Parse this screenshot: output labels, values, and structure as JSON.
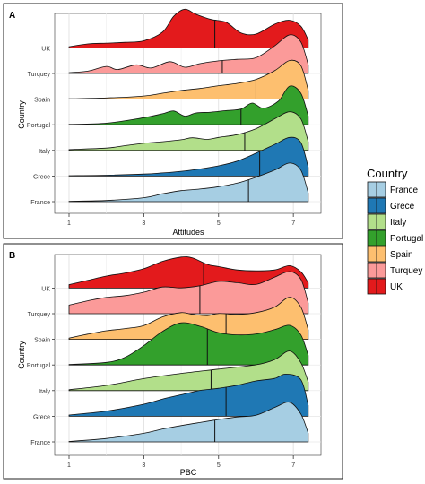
{
  "legend": {
    "title": "Country",
    "items": [
      {
        "label": "France",
        "color": "#a6cee3"
      },
      {
        "label": "Grece",
        "color": "#1f78b4"
      },
      {
        "label": "Italy",
        "color": "#b2df8a"
      },
      {
        "label": "Portugal",
        "color": "#33a02c"
      },
      {
        "label": "Spain",
        "color": "#fdbf6f"
      },
      {
        "label": "Turquey",
        "color": "#fb9a99"
      },
      {
        "label": "UK",
        "color": "#e31a1c"
      }
    ]
  },
  "chart_data": [
    {
      "type": "area",
      "panel_label": "A",
      "xlabel": "Attitudes",
      "ylabel": "Country",
      "xlim": [
        1,
        7.5
      ],
      "x_ticks": [
        "1",
        "3",
        "5",
        "7"
      ],
      "grid": true,
      "series": [
        {
          "name": "France",
          "color": "#a6cee3",
          "mean": 5.8,
          "points": [
            [
              1,
              0.01
            ],
            [
              2,
              0.03
            ],
            [
              3,
              0.1
            ],
            [
              3.5,
              0.2
            ],
            [
              4,
              0.28
            ],
            [
              4.5,
              0.32
            ],
            [
              5,
              0.38
            ],
            [
              5.5,
              0.47
            ],
            [
              6,
              0.62
            ],
            [
              6.5,
              0.8
            ],
            [
              6.9,
              0.98
            ],
            [
              7.2,
              0.8
            ],
            [
              7.4,
              0.22
            ]
          ]
        },
        {
          "name": "Grece",
          "color": "#1f78b4",
          "mean": 6.1,
          "points": [
            [
              1,
              0.01
            ],
            [
              2,
              0.02
            ],
            [
              3,
              0.05
            ],
            [
              3.5,
              0.08
            ],
            [
              4,
              0.12
            ],
            [
              4.5,
              0.18
            ],
            [
              5,
              0.26
            ],
            [
              5.5,
              0.38
            ],
            [
              6,
              0.58
            ],
            [
              6.5,
              0.8
            ],
            [
              6.9,
              0.98
            ],
            [
              7.2,
              0.85
            ],
            [
              7.4,
              0.22
            ]
          ]
        },
        {
          "name": "Italy",
          "color": "#b2df8a",
          "mean": 5.7,
          "points": [
            [
              1,
              0.02
            ],
            [
              2,
              0.06
            ],
            [
              2.5,
              0.12
            ],
            [
              3,
              0.18
            ],
            [
              3.5,
              0.22
            ],
            [
              4,
              0.27
            ],
            [
              4.3,
              0.32
            ],
            [
              4.7,
              0.28
            ],
            [
              5,
              0.33
            ],
            [
              5.5,
              0.4
            ],
            [
              6,
              0.55
            ],
            [
              6.5,
              0.8
            ],
            [
              6.9,
              0.98
            ],
            [
              7.2,
              0.8
            ],
            [
              7.4,
              0.22
            ]
          ]
        },
        {
          "name": "Portugal",
          "color": "#33a02c",
          "mean": 5.6,
          "points": [
            [
              1,
              0.01
            ],
            [
              2,
              0.04
            ],
            [
              3,
              0.18
            ],
            [
              3.5,
              0.28
            ],
            [
              3.8,
              0.35
            ],
            [
              4.1,
              0.22
            ],
            [
              4.4,
              0.3
            ],
            [
              4.8,
              0.32
            ],
            [
              5.2,
              0.36
            ],
            [
              5.6,
              0.4
            ],
            [
              5.9,
              0.55
            ],
            [
              6.2,
              0.42
            ],
            [
              6.6,
              0.6
            ],
            [
              6.9,
              0.98
            ],
            [
              7.2,
              0.8
            ],
            [
              7.4,
              0.22
            ]
          ]
        },
        {
          "name": "Spain",
          "color": "#fdbf6f",
          "mean": 6.0,
          "points": [
            [
              1,
              0.01
            ],
            [
              2,
              0.03
            ],
            [
              3,
              0.08
            ],
            [
              3.5,
              0.15
            ],
            [
              4,
              0.22
            ],
            [
              4.5,
              0.27
            ],
            [
              5,
              0.34
            ],
            [
              5.5,
              0.4
            ],
            [
              6,
              0.5
            ],
            [
              6.5,
              0.72
            ],
            [
              6.9,
              0.98
            ],
            [
              7.2,
              0.85
            ],
            [
              7.4,
              0.22
            ]
          ]
        },
        {
          "name": "Turquey",
          "color": "#fb9a99",
          "mean": 5.1,
          "points": [
            [
              1,
              0.02
            ],
            [
              1.5,
              0.06
            ],
            [
              2,
              0.18
            ],
            [
              2.3,
              0.1
            ],
            [
              2.8,
              0.22
            ],
            [
              3.2,
              0.14
            ],
            [
              3.7,
              0.3
            ],
            [
              4.1,
              0.16
            ],
            [
              4.5,
              0.25
            ],
            [
              5,
              0.32
            ],
            [
              5.5,
              0.36
            ],
            [
              6,
              0.4
            ],
            [
              6.5,
              0.7
            ],
            [
              6.9,
              0.98
            ],
            [
              7.2,
              0.8
            ],
            [
              7.4,
              0.22
            ]
          ]
        },
        {
          "name": "UK",
          "color": "#e31a1c",
          "mean": 4.9,
          "points": [
            [
              1,
              0.03
            ],
            [
              1.5,
              0.1
            ],
            [
              2,
              0.12
            ],
            [
              2.5,
              0.14
            ],
            [
              3,
              0.18
            ],
            [
              3.5,
              0.4
            ],
            [
              3.8,
              0.8
            ],
            [
              4.1,
              0.98
            ],
            [
              4.4,
              0.85
            ],
            [
              4.8,
              0.72
            ],
            [
              5.2,
              0.65
            ],
            [
              5.6,
              0.38
            ],
            [
              6,
              0.35
            ],
            [
              6.5,
              0.6
            ],
            [
              6.9,
              0.7
            ],
            [
              7.2,
              0.55
            ],
            [
              7.4,
              0.2
            ]
          ]
        }
      ]
    },
    {
      "type": "area",
      "panel_label": "B",
      "xlabel": "PBC",
      "ylabel": "Country",
      "xlim": [
        1,
        7.5
      ],
      "x_ticks": [
        "1",
        "3",
        "5",
        "7"
      ],
      "grid": true,
      "series": [
        {
          "name": "France",
          "color": "#a6cee3",
          "mean": 4.9,
          "points": [
            [
              1,
              0.01
            ],
            [
              2,
              0.08
            ],
            [
              3,
              0.2
            ],
            [
              3.5,
              0.3
            ],
            [
              4,
              0.38
            ],
            [
              4.5,
              0.45
            ],
            [
              5,
              0.52
            ],
            [
              5.5,
              0.58
            ],
            [
              6,
              0.62
            ],
            [
              6.5,
              0.8
            ],
            [
              6.9,
              0.92
            ],
            [
              7.2,
              0.65
            ],
            [
              7.4,
              0.2
            ]
          ]
        },
        {
          "name": "Grece",
          "color": "#1f78b4",
          "mean": 5.2,
          "points": [
            [
              1,
              0.03
            ],
            [
              2,
              0.12
            ],
            [
              3,
              0.28
            ],
            [
              3.5,
              0.4
            ],
            [
              4,
              0.5
            ],
            [
              4.5,
              0.6
            ],
            [
              5,
              0.65
            ],
            [
              5.5,
              0.72
            ],
            [
              6,
              0.82
            ],
            [
              6.5,
              0.88
            ],
            [
              6.8,
              0.98
            ],
            [
              7.2,
              0.85
            ],
            [
              7.4,
              0.25
            ]
          ]
        },
        {
          "name": "Italy",
          "color": "#b2df8a",
          "mean": 4.8,
          "points": [
            [
              1,
              0.02
            ],
            [
              2,
              0.12
            ],
            [
              3,
              0.28
            ],
            [
              4,
              0.4
            ],
            [
              5,
              0.5
            ],
            [
              6,
              0.6
            ],
            [
              6.5,
              0.72
            ],
            [
              6.9,
              0.92
            ],
            [
              7.2,
              0.65
            ],
            [
              7.4,
              0.2
            ]
          ]
        },
        {
          "name": "Portugal",
          "color": "#33a02c",
          "mean": 4.7,
          "points": [
            [
              1,
              0.01
            ],
            [
              2,
              0.06
            ],
            [
              2.5,
              0.18
            ],
            [
              3,
              0.45
            ],
            [
              3.5,
              0.78
            ],
            [
              4,
              0.98
            ],
            [
              4.5,
              0.9
            ],
            [
              5,
              0.75
            ],
            [
              5.5,
              0.7
            ],
            [
              6,
              0.72
            ],
            [
              6.5,
              0.82
            ],
            [
              6.9,
              0.92
            ],
            [
              7.2,
              0.7
            ],
            [
              7.4,
              0.22
            ]
          ]
        },
        {
          "name": "Spain",
          "color": "#fdbf6f",
          "mean": 5.2,
          "points": [
            [
              1,
              0.03
            ],
            [
              1.5,
              0.12
            ],
            [
              2,
              0.2
            ],
            [
              2.5,
              0.25
            ],
            [
              3,
              0.32
            ],
            [
              3.5,
              0.52
            ],
            [
              4,
              0.62
            ],
            [
              4.3,
              0.58
            ],
            [
              4.7,
              0.55
            ],
            [
              5,
              0.6
            ],
            [
              5.5,
              0.58
            ],
            [
              6,
              0.62
            ],
            [
              6.5,
              0.75
            ],
            [
              6.9,
              0.98
            ],
            [
              7.2,
              0.75
            ],
            [
              7.4,
              0.22
            ]
          ]
        },
        {
          "name": "Turquey",
          "color": "#fb9a99",
          "mean": 4.5,
          "points": [
            [
              1,
              0.2
            ],
            [
              1.5,
              0.3
            ],
            [
              2,
              0.38
            ],
            [
              2.5,
              0.42
            ],
            [
              3,
              0.5
            ],
            [
              3.5,
              0.62
            ],
            [
              4,
              0.6
            ],
            [
              4.5,
              0.65
            ],
            [
              5,
              0.75
            ],
            [
              5.5,
              0.72
            ],
            [
              6,
              0.68
            ],
            [
              6.5,
              0.85
            ],
            [
              6.9,
              0.98
            ],
            [
              7.2,
              0.8
            ],
            [
              7.4,
              0.25
            ]
          ]
        },
        {
          "name": "UK",
          "color": "#e31a1c",
          "mean": 4.6,
          "points": [
            [
              1,
              0.08
            ],
            [
              1.5,
              0.18
            ],
            [
              2,
              0.28
            ],
            [
              2.5,
              0.35
            ],
            [
              3,
              0.45
            ],
            [
              3.5,
              0.62
            ],
            [
              4,
              0.72
            ],
            [
              4.3,
              0.7
            ],
            [
              4.7,
              0.55
            ],
            [
              5,
              0.5
            ],
            [
              5.5,
              0.42
            ],
            [
              6,
              0.4
            ],
            [
              6.5,
              0.42
            ],
            [
              6.9,
              0.52
            ],
            [
              7.2,
              0.38
            ],
            [
              7.4,
              0.12
            ]
          ]
        }
      ]
    }
  ]
}
